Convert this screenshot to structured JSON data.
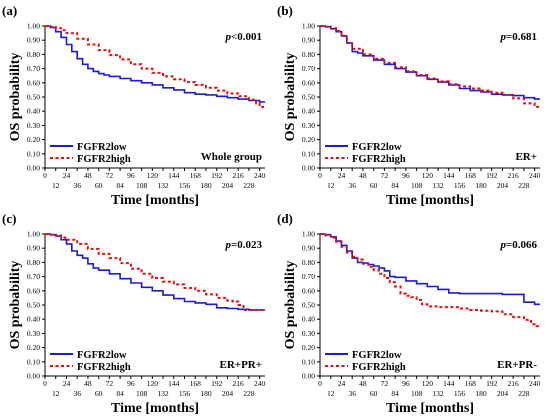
{
  "figure": {
    "common": {
      "ylabel": "OS probability",
      "xlabel": "Time [months]",
      "xlim": [
        0,
        246
      ],
      "ylim": [
        0.0,
        1.0
      ],
      "yticks": [
        "0.00",
        "0.10",
        "0.20",
        "0.30",
        "0.40",
        "0.50",
        "0.60",
        "0.70",
        "0.80",
        "0.90",
        "1.00"
      ],
      "xticks_top": [
        "0",
        "24",
        "48",
        "72",
        "96",
        "120",
        "144",
        "168",
        "192",
        "216",
        "240"
      ],
      "xticks_bottom": [
        "12",
        "36",
        "60",
        "84",
        "108",
        "132",
        "156",
        "180",
        "204",
        "228"
      ],
      "legend_low": "FGFR2low",
      "legend_high": "FGFR2high",
      "colors": {
        "low": "#1a1ad6",
        "high": "#e01010",
        "axis": "#000000"
      }
    }
  },
  "chart_data": [
    {
      "type": "line",
      "panel_label": "(a)",
      "pvalue": "p<0.001",
      "group": "Whole group",
      "series": [
        {
          "name": "FGFR2low",
          "style": "solid",
          "points": [
            [
              0,
              1.0
            ],
            [
              6,
              0.99
            ],
            [
              12,
              0.96
            ],
            [
              18,
              0.92
            ],
            [
              24,
              0.87
            ],
            [
              30,
              0.82
            ],
            [
              36,
              0.77
            ],
            [
              42,
              0.73
            ],
            [
              48,
              0.7
            ],
            [
              54,
              0.68
            ],
            [
              60,
              0.665
            ],
            [
              66,
              0.655
            ],
            [
              72,
              0.645
            ],
            [
              84,
              0.63
            ],
            [
              96,
              0.615
            ],
            [
              108,
              0.6
            ],
            [
              120,
              0.585
            ],
            [
              132,
              0.565
            ],
            [
              144,
              0.55
            ],
            [
              156,
              0.53
            ],
            [
              168,
              0.52
            ],
            [
              180,
              0.515
            ],
            [
              192,
              0.505
            ],
            [
              204,
              0.495
            ],
            [
              216,
              0.485
            ],
            [
              228,
              0.475
            ],
            [
              240,
              0.465
            ],
            [
              246,
              0.465
            ]
          ]
        },
        {
          "name": "FGFR2high",
          "style": "dashed",
          "points": [
            [
              0,
              1.0
            ],
            [
              6,
              0.995
            ],
            [
              12,
              0.985
            ],
            [
              18,
              0.97
            ],
            [
              24,
              0.95
            ],
            [
              36,
              0.91
            ],
            [
              48,
              0.87
            ],
            [
              60,
              0.83
            ],
            [
              72,
              0.795
            ],
            [
              84,
              0.765
            ],
            [
              96,
              0.73
            ],
            [
              108,
              0.7
            ],
            [
              120,
              0.67
            ],
            [
              132,
              0.645
            ],
            [
              144,
              0.625
            ],
            [
              156,
              0.605
            ],
            [
              168,
              0.585
            ],
            [
              180,
              0.565
            ],
            [
              192,
              0.545
            ],
            [
              204,
              0.525
            ],
            [
              216,
              0.505
            ],
            [
              228,
              0.48
            ],
            [
              236,
              0.455
            ],
            [
              240,
              0.43
            ],
            [
              246,
              0.43
            ]
          ]
        }
      ]
    },
    {
      "type": "line",
      "panel_label": "(b)",
      "pvalue": "p=0.681",
      "group": "ER+",
      "series": [
        {
          "name": "FGFR2low",
          "style": "solid",
          "points": [
            [
              0,
              1.0
            ],
            [
              6,
              0.995
            ],
            [
              12,
              0.98
            ],
            [
              18,
              0.96
            ],
            [
              24,
              0.93
            ],
            [
              30,
              0.88
            ],
            [
              36,
              0.82
            ],
            [
              42,
              0.81
            ],
            [
              48,
              0.79
            ],
            [
              60,
              0.76
            ],
            [
              72,
              0.73
            ],
            [
              84,
              0.7
            ],
            [
              96,
              0.675
            ],
            [
              108,
              0.65
            ],
            [
              120,
              0.625
            ],
            [
              132,
              0.605
            ],
            [
              144,
              0.585
            ],
            [
              156,
              0.56
            ],
            [
              168,
              0.545
            ],
            [
              180,
              0.535
            ],
            [
              192,
              0.52
            ],
            [
              204,
              0.515
            ],
            [
              216,
              0.51
            ],
            [
              228,
              0.495
            ],
            [
              240,
              0.485
            ],
            [
              246,
              0.485
            ]
          ]
        },
        {
          "name": "FGFR2high",
          "style": "dashed",
          "points": [
            [
              0,
              1.0
            ],
            [
              6,
              0.995
            ],
            [
              12,
              0.985
            ],
            [
              18,
              0.965
            ],
            [
              24,
              0.93
            ],
            [
              30,
              0.88
            ],
            [
              36,
              0.84
            ],
            [
              48,
              0.8
            ],
            [
              60,
              0.77
            ],
            [
              72,
              0.74
            ],
            [
              84,
              0.71
            ],
            [
              96,
              0.68
            ],
            [
              108,
              0.655
            ],
            [
              120,
              0.63
            ],
            [
              132,
              0.61
            ],
            [
              144,
              0.59
            ],
            [
              156,
              0.575
            ],
            [
              168,
              0.56
            ],
            [
              180,
              0.545
            ],
            [
              192,
              0.53
            ],
            [
              204,
              0.515
            ],
            [
              216,
              0.49
            ],
            [
              228,
              0.455
            ],
            [
              240,
              0.43
            ],
            [
              246,
              0.43
            ]
          ]
        }
      ]
    },
    {
      "type": "line",
      "panel_label": "(c)",
      "pvalue": "p=0.023",
      "group": "ER+PR+",
      "series": [
        {
          "name": "FGFR2low",
          "style": "solid",
          "points": [
            [
              0,
              1.0
            ],
            [
              6,
              0.995
            ],
            [
              12,
              0.985
            ],
            [
              18,
              0.96
            ],
            [
              24,
              0.93
            ],
            [
              30,
              0.88
            ],
            [
              36,
              0.85
            ],
            [
              42,
              0.83
            ],
            [
              48,
              0.79
            ],
            [
              54,
              0.76
            ],
            [
              60,
              0.745
            ],
            [
              72,
              0.72
            ],
            [
              84,
              0.685
            ],
            [
              96,
              0.655
            ],
            [
              108,
              0.625
            ],
            [
              120,
              0.6
            ],
            [
              132,
              0.57
            ],
            [
              144,
              0.545
            ],
            [
              156,
              0.525
            ],
            [
              168,
              0.515
            ],
            [
              180,
              0.505
            ],
            [
              192,
              0.48
            ],
            [
              204,
              0.475
            ],
            [
              216,
              0.47
            ],
            [
              228,
              0.465
            ],
            [
              240,
              0.465
            ],
            [
              246,
              0.465
            ]
          ]
        },
        {
          "name": "FGFR2high",
          "style": "dashed",
          "points": [
            [
              0,
              1.0
            ],
            [
              6,
              0.995
            ],
            [
              12,
              0.99
            ],
            [
              18,
              0.975
            ],
            [
              24,
              0.96
            ],
            [
              36,
              0.93
            ],
            [
              48,
              0.895
            ],
            [
              60,
              0.86
            ],
            [
              72,
              0.83
            ],
            [
              84,
              0.795
            ],
            [
              96,
              0.755
            ],
            [
              108,
              0.72
            ],
            [
              120,
              0.69
            ],
            [
              132,
              0.665
            ],
            [
              144,
              0.645
            ],
            [
              156,
              0.62
            ],
            [
              168,
              0.6
            ],
            [
              180,
              0.575
            ],
            [
              192,
              0.55
            ],
            [
              204,
              0.53
            ],
            [
              210,
              0.525
            ],
            [
              216,
              0.5
            ],
            [
              222,
              0.465
            ],
            [
              240,
              0.465
            ],
            [
              246,
              0.465
            ]
          ]
        }
      ]
    },
    {
      "type": "line",
      "panel_label": "(d)",
      "pvalue": "p=0.066",
      "group": "ER+PR-",
      "series": [
        {
          "name": "FGFR2low",
          "style": "solid",
          "points": [
            [
              0,
              1.0
            ],
            [
              6,
              0.995
            ],
            [
              12,
              0.98
            ],
            [
              18,
              0.95
            ],
            [
              24,
              0.92
            ],
            [
              30,
              0.88
            ],
            [
              36,
              0.83
            ],
            [
              42,
              0.8
            ],
            [
              48,
              0.795
            ],
            [
              54,
              0.785
            ],
            [
              60,
              0.775
            ],
            [
              66,
              0.76
            ],
            [
              72,
              0.74
            ],
            [
              78,
              0.7
            ],
            [
              84,
              0.695
            ],
            [
              96,
              0.67
            ],
            [
              108,
              0.65
            ],
            [
              120,
              0.63
            ],
            [
              132,
              0.61
            ],
            [
              144,
              0.585
            ],
            [
              156,
              0.58
            ],
            [
              168,
              0.58
            ],
            [
              180,
              0.58
            ],
            [
              192,
              0.58
            ],
            [
              204,
              0.575
            ],
            [
              216,
              0.575
            ],
            [
              228,
              0.52
            ],
            [
              240,
              0.505
            ],
            [
              246,
              0.505
            ]
          ]
        },
        {
          "name": "FGFR2high",
          "style": "dashed",
          "points": [
            [
              0,
              1.0
            ],
            [
              6,
              0.99
            ],
            [
              12,
              0.975
            ],
            [
              18,
              0.945
            ],
            [
              24,
              0.91
            ],
            [
              30,
              0.87
            ],
            [
              36,
              0.84
            ],
            [
              42,
              0.82
            ],
            [
              48,
              0.79
            ],
            [
              54,
              0.77
            ],
            [
              60,
              0.745
            ],
            [
              66,
              0.72
            ],
            [
              72,
              0.69
            ],
            [
              78,
              0.66
            ],
            [
              84,
              0.63
            ],
            [
              90,
              0.58
            ],
            [
              96,
              0.565
            ],
            [
              102,
              0.555
            ],
            [
              108,
              0.535
            ],
            [
              114,
              0.505
            ],
            [
              120,
              0.49
            ],
            [
              132,
              0.485
            ],
            [
              144,
              0.485
            ],
            [
              156,
              0.475
            ],
            [
              168,
              0.465
            ],
            [
              180,
              0.46
            ],
            [
              192,
              0.455
            ],
            [
              204,
              0.435
            ],
            [
              216,
              0.415
            ],
            [
              228,
              0.395
            ],
            [
              236,
              0.365
            ],
            [
              240,
              0.35
            ],
            [
              244,
              0.34
            ]
          ]
        }
      ]
    }
  ]
}
